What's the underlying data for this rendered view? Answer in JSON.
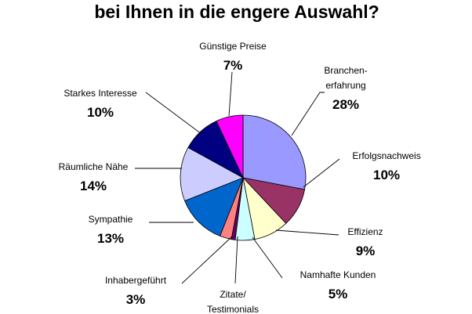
{
  "chart_data": {
    "type": "pie",
    "title_lines": [
      "bei Ihnen in die engere Auswahl?"
    ],
    "start_angle_deg": 0,
    "direction": "clockwise",
    "slices": [
      {
        "label_lines": [
          "Branchen-",
          "erfahrung"
        ],
        "pct_label": "28%",
        "value": 28,
        "color": "#9999ff"
      },
      {
        "label_lines": [
          "Erfolgsnachweis"
        ],
        "pct_label": "10%",
        "value": 10,
        "color": "#993366"
      },
      {
        "label_lines": [
          "Effizienz"
        ],
        "pct_label": "9%",
        "value": 9,
        "color": "#ffffcc"
      },
      {
        "label_lines": [
          "Namhafte Kunden"
        ],
        "pct_label": "5%",
        "value": 5,
        "color": "#ccffff"
      },
      {
        "label_lines": [
          "Zitate/",
          "Testimonials"
        ],
        "pct_label": "",
        "value": 1,
        "color": "#660066"
      },
      {
        "label_lines": [
          "Inhabergeführt"
        ],
        "pct_label": "3%",
        "value": 3,
        "color": "#ff8080"
      },
      {
        "label_lines": [
          "Sympathie"
        ],
        "pct_label": "13%",
        "value": 13,
        "color": "#0066cc"
      },
      {
        "label_lines": [
          "Räumliche Nähe"
        ],
        "pct_label": "14%",
        "value": 14,
        "color": "#ccccff"
      },
      {
        "label_lines": [
          "Starkes Interesse"
        ],
        "pct_label": "10%",
        "value": 10,
        "color": "#000080"
      },
      {
        "label_lines": [
          "Günstige Preise"
        ],
        "pct_label": "7%",
        "value": 7,
        "color": "#ff00ff"
      }
    ]
  }
}
